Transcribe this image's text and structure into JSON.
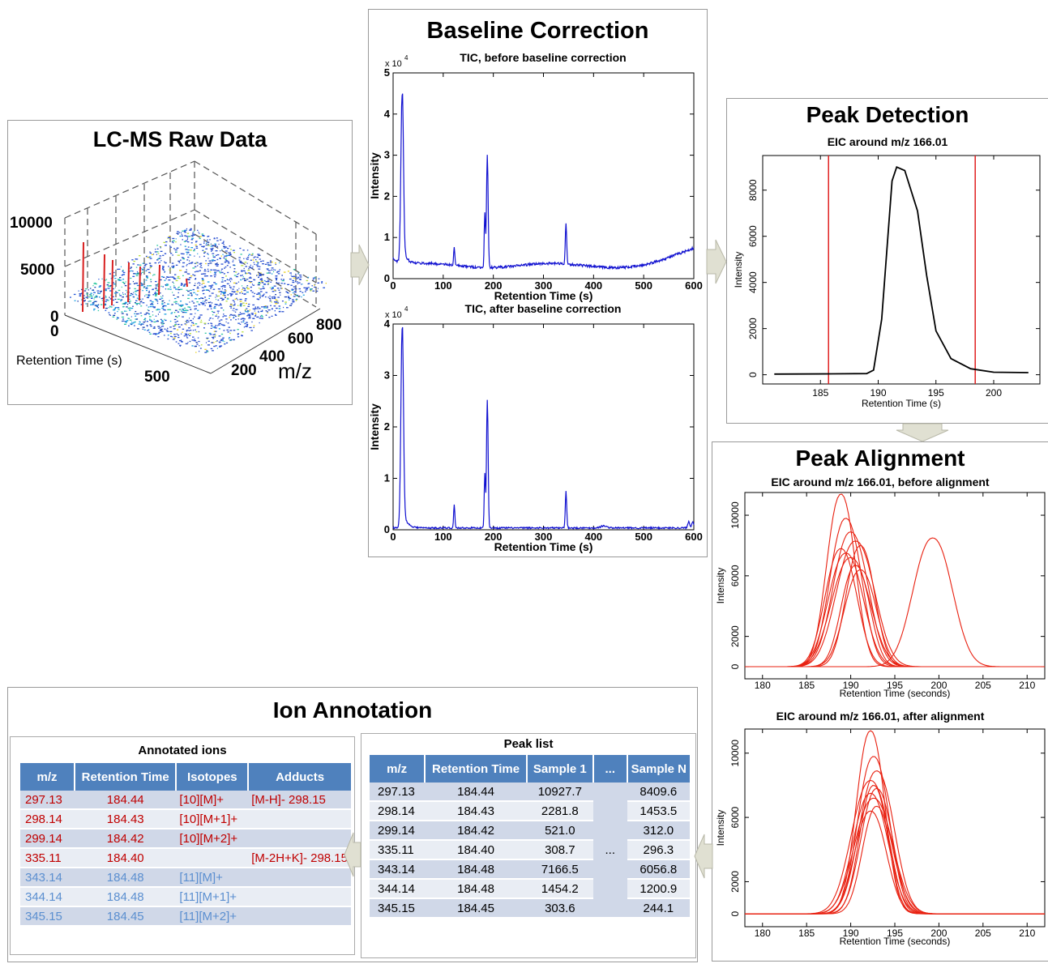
{
  "raw": {
    "title": "LC-MS Raw Data",
    "z_ticks": [
      "10000",
      "5000",
      "0"
    ],
    "x_tick_zero": "0",
    "x_label": "Retention Time (s)",
    "x_tick_500": "500",
    "y_ticks": [
      "200",
      "400",
      "600",
      "800"
    ],
    "y_label": "m/z"
  },
  "baseline": {
    "title": "Baseline Correction",
    "before": {
      "title": "TIC, before baseline correction",
      "exponent": "x 10",
      "exp_sup": "4",
      "ylabel": "Intensity",
      "xlabel": "Retention Time (s)",
      "yticks": [
        "0",
        "1",
        "2",
        "3",
        "4",
        "5"
      ],
      "xticks": [
        "0",
        "100",
        "200",
        "300",
        "400",
        "500",
        "600"
      ]
    },
    "after": {
      "title": "TIC, after baseline correction",
      "exponent": "x 10",
      "exp_sup": "4",
      "ylabel": "Intensity",
      "xlabel": "Retention Time (s)",
      "yticks": [
        "0",
        "1",
        "2",
        "3",
        "4"
      ],
      "xticks": [
        "0",
        "100",
        "200",
        "300",
        "400",
        "500",
        "600"
      ]
    }
  },
  "detection": {
    "title": "Peak Detection",
    "subtitle": "EIC around m/z 166.01",
    "ylabel": "Intensity",
    "xlabel": "Retention Time (s)",
    "yticks": [
      "0",
      "2000",
      "4000",
      "6000",
      "8000"
    ],
    "xticks": [
      "185",
      "190",
      "195",
      "200"
    ]
  },
  "alignment": {
    "title": "Peak Alignment",
    "before_title": "EIC around m/z 166.01, before alignment",
    "after_title": "EIC around m/z 166.01, after alignment",
    "ylabel": "Intensity",
    "xlabel": "Retention Time (seconds)",
    "yticks": [
      "0",
      "2000",
      "6000",
      "10000"
    ],
    "xticks": [
      "180",
      "185",
      "190",
      "195",
      "200",
      "205",
      "210"
    ]
  },
  "annotation": {
    "title": "Ion Annotation",
    "annotated": {
      "caption": "Annotated ions",
      "headers": [
        "m/z",
        "Retention Time",
        "Isotopes",
        "Adducts"
      ],
      "rows": [
        [
          "297.13",
          "184.44",
          "[10][M]+",
          "[M-H]- 298.15"
        ],
        [
          "298.14",
          "184.43",
          "[10][M+1]+",
          ""
        ],
        [
          "299.14",
          "184.42",
          "[10][M+2]+",
          ""
        ],
        [
          "335.11",
          "184.40",
          "",
          "[M-2H+K]- 298.15"
        ],
        [
          "343.14",
          "184.48",
          "[11][M]+",
          ""
        ],
        [
          "344.14",
          "184.48",
          "[11][M+1]+",
          ""
        ],
        [
          "345.15",
          "184.45",
          "[11][M+2]+",
          ""
        ]
      ]
    },
    "peaks": {
      "caption": "Peak list",
      "headers": [
        "m/z",
        "Retention Time",
        "Sample 1",
        "...",
        "Sample N"
      ],
      "ellipsis": "...",
      "rows": [
        [
          "297.13",
          "184.44",
          "10927.7",
          "8409.6"
        ],
        [
          "298.14",
          "184.43",
          "2281.8",
          "1453.5"
        ],
        [
          "299.14",
          "184.42",
          "521.0",
          "312.0"
        ],
        [
          "335.11",
          "184.40",
          "308.7",
          "296.3"
        ],
        [
          "343.14",
          "184.48",
          "7166.5",
          "6056.8"
        ],
        [
          "344.14",
          "184.48",
          "1454.2",
          "1200.9"
        ],
        [
          "345.15",
          "184.45",
          "303.6",
          "244.1"
        ]
      ]
    }
  },
  "colors": {
    "tic": "#1010d0",
    "eic_detect": "#000000",
    "boundary": "#e02020",
    "eic_align": "#e82010",
    "table_header": "#4f81bd",
    "row_red": "#c00000",
    "row_blue": "#5b8fd0",
    "arrow": "#dcdccc"
  }
}
